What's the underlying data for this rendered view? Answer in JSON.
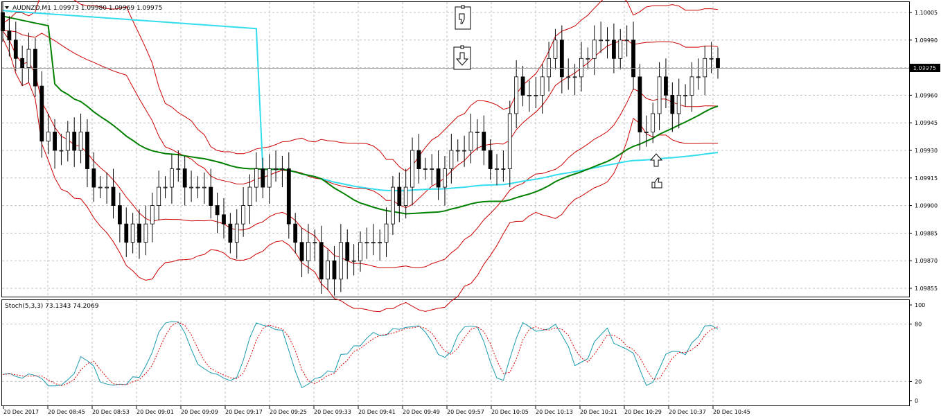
{
  "window": {
    "title": "AUDNZD,M1 1.09973 1.09980 1.09969 1.09975",
    "current_price": "1.09975",
    "indicator_title": "Stoch(5,3,3) 73.1343 74.2069"
  },
  "main": {
    "price_ticks": [
      "1.10005",
      "1.09990",
      "1.09975",
      "1.09960",
      "1.09945",
      "1.09930",
      "1.09915",
      "1.09900",
      "1.09885",
      "1.09870",
      "1.09855"
    ],
    "ylim": [
      1.0985,
      1.1001
    ]
  },
  "stoch": {
    "ticks": [
      "100",
      "80",
      "20",
      "0"
    ]
  },
  "time_ticks": [
    "20 Dec 2017",
    "20 Dec 08:45",
    "20 Dec 08:53",
    "20 Dec 09:01",
    "20 Dec 09:09",
    "20 Dec 09:17",
    "20 Dec 09:25",
    "20 Dec 09:33",
    "20 Dec 09:41",
    "20 Dec 09:49",
    "20 Dec 09:57",
    "20 Dec 10:05",
    "20 Dec 10:13",
    "20 Dec 10:21",
    "20 Dec 10:29",
    "20 Dec 10:37",
    "20 Dec 10:45"
  ],
  "colors": {
    "bull": "#ffffff",
    "bear": "#000000",
    "bollinger": "#cc0000",
    "ma_fast": "#008000",
    "ma_slow": "#33ddee",
    "stoch_main": "#1a9ab0",
    "stoch_signal": "#dd0000",
    "grid": "#c0c0c0"
  },
  "icons": [
    "thumbs-down-icon",
    "sell-arrow-down-icon",
    "buy-arrow-up-icon",
    "thumbs-up-icon"
  ],
  "chart_data": {
    "type": "candlestick",
    "symbol": "AUDNZD",
    "timeframe": "M1",
    "closes": [
      1.09995,
      1.0999,
      1.0998,
      1.09975,
      1.09985,
      1.09965,
      1.09935,
      1.0994,
      1.0993,
      1.0993,
      1.0994,
      1.0993,
      1.0994,
      1.0992,
      1.0991,
      1.0991,
      1.0991,
      1.099,
      1.0989,
      1.0988,
      1.0989,
      1.0988,
      1.0989,
      1.099,
      1.0991,
      1.0991,
      1.0992,
      1.0992,
      1.0991,
      1.0991,
      1.0991,
      1.0991,
      1.099,
      1.09895,
      1.0989,
      1.0988,
      1.0989,
      1.099,
      1.0991,
      1.0992,
      1.0991,
      1.0992,
      1.0992,
      1.0992,
      1.0989,
      1.0988,
      1.0987,
      1.0988,
      1.0988,
      1.0986,
      1.0987,
      1.0986,
      1.0988,
      1.0987,
      1.0987,
      1.0988,
      1.0988,
      1.0988,
      1.0988,
      1.0989,
      1.0991,
      1.099,
      1.0991,
      1.0993,
      1.0992,
      1.0992,
      1.0992,
      1.0991,
      1.0992,
      1.0993,
      1.0993,
      1.0993,
      1.0994,
      1.0994,
      1.0993,
      1.0992,
      1.0992,
      1.0992,
      1.0995,
      1.0997,
      1.0996,
      1.0996,
      1.0996,
      1.0997,
      1.0998,
      1.0999,
      1.0997,
      1.0997,
      1.0997,
      1.0998,
      1.0998,
      1.0999,
      1.0999,
      1.0999,
      1.0998,
      1.0999,
      1.0999,
      1.0997,
      1.0994,
      1.0994,
      1.0995,
      1.0997,
      1.0996,
      1.0995,
      1.0996,
      1.0996,
      1.0997,
      1.0997,
      1.0998,
      1.0998,
      1.09975
    ]
  }
}
